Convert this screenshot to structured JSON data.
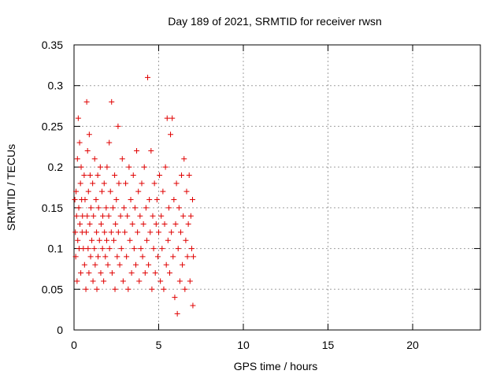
{
  "chart_data": {
    "type": "scatter",
    "title": "Day 189 of 2021, SRMTID for receiver rwsn",
    "xlabel": "GPS time / hours",
    "ylabel": "SRMTID / TECUs",
    "xlim": [
      0,
      24
    ],
    "ylim": [
      0,
      0.35
    ],
    "xticks": [
      0,
      5,
      10,
      15,
      20
    ],
    "yticks": [
      0,
      0.05,
      0.1,
      0.15,
      0.2,
      0.25,
      0.3,
      0.35
    ],
    "ytick_labels": [
      "0",
      "0.05",
      "0.1",
      "0.15",
      "0.2",
      "0.25",
      "0.3",
      "0.35"
    ],
    "grid": true,
    "marker": "+",
    "colors": {
      "points": "#e00000",
      "grid": "#a0a0a0",
      "axes": "#000000"
    },
    "series": [
      {
        "values_note_x_hours_y_tecu": true,
        "points": [
          [
            0.05,
            0.16
          ],
          [
            0.08,
            0.12
          ],
          [
            0.1,
            0.09
          ],
          [
            0.12,
            0.17
          ],
          [
            0.15,
            0.14
          ],
          [
            0.18,
            0.06
          ],
          [
            0.2,
            0.21
          ],
          [
            0.22,
            0.11
          ],
          [
            0.25,
            0.26
          ],
          [
            0.28,
            0.15
          ],
          [
            0.3,
            0.1
          ],
          [
            0.33,
            0.23
          ],
          [
            0.35,
            0.13
          ],
          [
            0.38,
            0.18
          ],
          [
            0.4,
            0.07
          ],
          [
            0.42,
            0.2
          ],
          [
            0.45,
            0.16
          ],
          [
            0.48,
            0.12
          ],
          [
            0.5,
            0.14
          ],
          [
            0.55,
            0.1
          ],
          [
            0.6,
            0.19
          ],
          [
            0.62,
            0.08
          ],
          [
            0.65,
            0.16
          ],
          [
            0.7,
            0.05
          ],
          [
            0.72,
            0.12
          ],
          [
            0.75,
            0.28
          ],
          [
            0.78,
            0.14
          ],
          [
            0.8,
            0.22
          ],
          [
            0.83,
            0.1
          ],
          [
            0.85,
            0.17
          ],
          [
            0.88,
            0.07
          ],
          [
            0.9,
            0.24
          ],
          [
            0.93,
            0.13
          ],
          [
            0.95,
            0.19
          ],
          [
            0.98,
            0.09
          ],
          [
            1.0,
            0.15
          ],
          [
            1.05,
            0.11
          ],
          [
            1.1,
            0.18
          ],
          [
            1.12,
            0.06
          ],
          [
            1.15,
            0.14
          ],
          [
            1.2,
            0.1
          ],
          [
            1.22,
            0.21
          ],
          [
            1.25,
            0.08
          ],
          [
            1.3,
            0.16
          ],
          [
            1.33,
            0.12
          ],
          [
            1.35,
            0.05
          ],
          [
            1.4,
            0.19
          ],
          [
            1.42,
            0.09
          ],
          [
            1.45,
            0.15
          ],
          [
            1.5,
            0.11
          ],
          [
            1.55,
            0.2
          ],
          [
            1.58,
            0.07
          ],
          [
            1.6,
            0.13
          ],
          [
            1.65,
            0.17
          ],
          [
            1.68,
            0.1
          ],
          [
            1.7,
            0.14
          ],
          [
            1.75,
            0.06
          ],
          [
            1.78,
            0.18
          ],
          [
            1.8,
            0.12
          ],
          [
            1.85,
            0.09
          ],
          [
            1.9,
            0.15
          ],
          [
            1.93,
            0.11
          ],
          [
            1.95,
            0.2
          ],
          [
            2.0,
            0.08
          ],
          [
            2.05,
            0.14
          ],
          [
            2.08,
            0.23
          ],
          [
            2.1,
            0.1
          ],
          [
            2.15,
            0.17
          ],
          [
            2.2,
            0.12
          ],
          [
            2.22,
            0.28
          ],
          [
            2.25,
            0.07
          ],
          [
            2.3,
            0.15
          ],
          [
            2.35,
            0.11
          ],
          [
            2.4,
            0.19
          ],
          [
            2.42,
            0.05
          ],
          [
            2.45,
            0.13
          ],
          [
            2.5,
            0.16
          ],
          [
            2.55,
            0.09
          ],
          [
            2.6,
            0.25
          ],
          [
            2.62,
            0.12
          ],
          [
            2.65,
            0.18
          ],
          [
            2.7,
            0.08
          ],
          [
            2.75,
            0.14
          ],
          [
            2.8,
            0.1
          ],
          [
            2.85,
            0.21
          ],
          [
            2.9,
            0.06
          ],
          [
            2.95,
            0.15
          ],
          [
            3.0,
            0.12
          ],
          [
            3.05,
            0.18
          ],
          [
            3.1,
            0.09
          ],
          [
            3.15,
            0.14
          ],
          [
            3.2,
            0.05
          ],
          [
            3.25,
            0.2
          ],
          [
            3.3,
            0.11
          ],
          [
            3.35,
            0.16
          ],
          [
            3.4,
            0.07
          ],
          [
            3.45,
            0.13
          ],
          [
            3.5,
            0.19
          ],
          [
            3.55,
            0.1
          ],
          [
            3.6,
            0.15
          ],
          [
            3.65,
            0.08
          ],
          [
            3.7,
            0.22
          ],
          [
            3.75,
            0.12
          ],
          [
            3.8,
            0.17
          ],
          [
            3.85,
            0.06
          ],
          [
            3.9,
            0.14
          ],
          [
            3.95,
            0.1
          ],
          [
            4.0,
            0.18
          ],
          [
            4.05,
            0.09
          ],
          [
            4.1,
            0.13
          ],
          [
            4.15,
            0.2
          ],
          [
            4.2,
            0.07
          ],
          [
            4.25,
            0.15
          ],
          [
            4.3,
            0.11
          ],
          [
            4.35,
            0.31
          ],
          [
            4.4,
            0.08
          ],
          [
            4.45,
            0.16
          ],
          [
            4.5,
            0.12
          ],
          [
            4.55,
            0.22
          ],
          [
            4.6,
            0.05
          ],
          [
            4.65,
            0.14
          ],
          [
            4.7,
            0.1
          ],
          [
            4.75,
            0.18
          ],
          [
            4.8,
            0.07
          ],
          [
            4.85,
            0.13
          ],
          [
            4.9,
            0.16
          ],
          [
            4.95,
            0.09
          ],
          [
            5.0,
            0.12
          ],
          [
            5.05,
            0.19
          ],
          [
            5.1,
            0.06
          ],
          [
            5.15,
            0.14
          ],
          [
            5.2,
            0.1
          ],
          [
            5.25,
            0.17
          ],
          [
            5.3,
            0.05
          ],
          [
            5.35,
            0.13
          ],
          [
            5.4,
            0.2
          ],
          [
            5.45,
            0.08
          ],
          [
            5.5,
            0.26
          ],
          [
            5.55,
            0.11
          ],
          [
            5.6,
            0.15
          ],
          [
            5.65,
            0.07
          ],
          [
            5.7,
            0.24
          ],
          [
            5.75,
            0.12
          ],
          [
            5.8,
            0.26
          ],
          [
            5.85,
            0.09
          ],
          [
            5.9,
            0.16
          ],
          [
            5.95,
            0.04
          ],
          [
            6.0,
            0.13
          ],
          [
            6.05,
            0.18
          ],
          [
            6.1,
            0.02
          ],
          [
            6.15,
            0.1
          ],
          [
            6.2,
            0.15
          ],
          [
            6.25,
            0.06
          ],
          [
            6.3,
            0.12
          ],
          [
            6.35,
            0.19
          ],
          [
            6.4,
            0.08
          ],
          [
            6.45,
            0.14
          ],
          [
            6.5,
            0.21
          ],
          [
            6.55,
            0.05
          ],
          [
            6.6,
            0.11
          ],
          [
            6.65,
            0.17
          ],
          [
            6.7,
            0.09
          ],
          [
            6.75,
            0.13
          ],
          [
            6.8,
            0.19
          ],
          [
            6.85,
            0.06
          ],
          [
            6.9,
            0.14
          ],
          [
            6.95,
            0.1
          ],
          [
            7.0,
            0.16
          ],
          [
            7.02,
            0.03
          ],
          [
            7.05,
            0.09
          ]
        ]
      }
    ]
  }
}
